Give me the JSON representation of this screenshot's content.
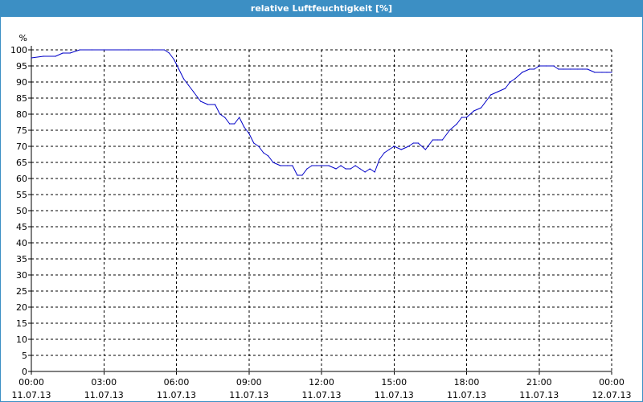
{
  "window": {
    "title": "relative Luftfeuchtigkeit [%]"
  },
  "chart_data": {
    "type": "line",
    "title": "relative Luftfeuchtigkeit [%]",
    "ylabel": "%",
    "xlabel": "",
    "ylim": [
      0,
      100
    ],
    "yticks": [
      0,
      5,
      10,
      15,
      20,
      25,
      30,
      35,
      40,
      45,
      50,
      55,
      60,
      65,
      70,
      75,
      80,
      85,
      90,
      95,
      100
    ],
    "xlim_hours": [
      0,
      24
    ],
    "xtick_labels": [
      {
        "time": "00:00",
        "date": "11.07.13"
      },
      {
        "time": "03:00",
        "date": "11.07.13"
      },
      {
        "time": "06:00",
        "date": "11.07.13"
      },
      {
        "time": "09:00",
        "date": "11.07.13"
      },
      {
        "time": "12:00",
        "date": "11.07.13"
      },
      {
        "time": "15:00",
        "date": "11.07.13"
      },
      {
        "time": "18:00",
        "date": "11.07.13"
      },
      {
        "time": "21:00",
        "date": "11.07.13"
      },
      {
        "time": "00:00",
        "date": "12.07.13"
      }
    ],
    "grid": true,
    "series": [
      {
        "color": "#0000c8",
        "x_hours": [
          0,
          0.5,
          1.0,
          1.3,
          1.6,
          2.0,
          2.5,
          3.0,
          4.0,
          5.0,
          5.5,
          5.7,
          5.9,
          6.1,
          6.3,
          6.5,
          6.7,
          7.0,
          7.3,
          7.6,
          7.8,
          8.0,
          8.2,
          8.4,
          8.6,
          8.8,
          9.0,
          9.2,
          9.4,
          9.6,
          9.8,
          10.0,
          10.3,
          10.6,
          10.8,
          11.0,
          11.2,
          11.4,
          11.6,
          11.8,
          12.0,
          12.3,
          12.6,
          12.8,
          13.0,
          13.2,
          13.4,
          13.6,
          13.8,
          14.0,
          14.2,
          14.4,
          14.6,
          14.8,
          15.0,
          15.3,
          15.6,
          15.8,
          16.0,
          16.3,
          16.6,
          16.8,
          17.0,
          17.3,
          17.6,
          17.8,
          18.0,
          18.3,
          18.6,
          18.8,
          19.0,
          19.3,
          19.6,
          19.8,
          20.0,
          20.3,
          20.6,
          20.8,
          21.0,
          21.3,
          21.6,
          21.8,
          22.0,
          22.3,
          22.6,
          22.8,
          23.0,
          23.3,
          23.6,
          23.8,
          24.0
        ],
        "values": [
          97.5,
          98,
          98,
          99,
          99,
          100,
          100,
          100,
          100,
          100,
          100,
          99,
          97,
          94,
          91,
          89,
          87,
          84,
          83,
          83,
          80,
          79,
          77,
          77,
          79,
          76,
          74,
          71,
          70,
          68,
          67,
          65,
          64,
          64,
          64,
          61,
          61,
          63,
          64,
          64,
          64,
          64,
          63,
          64,
          63,
          63,
          64,
          63,
          62,
          63,
          62,
          66,
          68,
          69,
          70,
          69,
          70,
          71,
          71,
          69,
          72,
          72,
          72,
          75,
          77,
          79,
          79,
          81,
          82,
          84,
          86,
          87,
          88,
          90,
          91,
          93,
          94,
          94,
          95,
          95,
          95,
          94,
          94,
          94,
          94,
          94,
          94,
          93,
          93,
          93,
          93
        ]
      }
    ]
  }
}
